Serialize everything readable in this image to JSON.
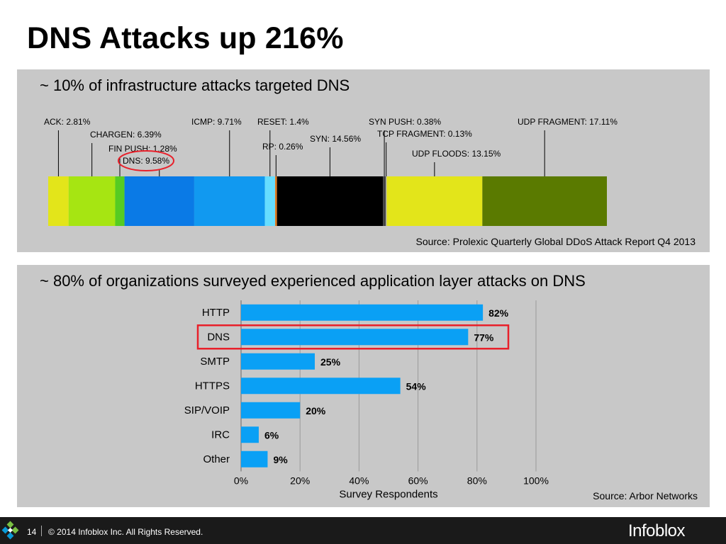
{
  "slide": {
    "title": "DNS Attacks up 216%",
    "page_number": "14",
    "copyright": "© 2014 Infoblox Inc. All Rights Reserved.",
    "logo_text": "Infoblox"
  },
  "chart_data": [
    {
      "type": "bar",
      "orientation": "stacked-horizontal",
      "heading": "~ 10% of infrastructure attacks targeted DNS",
      "source": "Source: Prolexic Quarterly Global DDoS Attack Report Q4 2013",
      "segments": [
        {
          "label": "ACK: 2.81%",
          "value": 2.81,
          "color": "#e3e51a"
        },
        {
          "label": "CHARGEN: 6.39%",
          "value": 6.39,
          "color": "#a6e512"
        },
        {
          "label": "FIN PUSH: 1.28%",
          "value": 1.28,
          "color": "#55cc22"
        },
        {
          "label": "DNS: 9.58%",
          "value": 9.58,
          "color": "#0a7ae6",
          "highlight": true
        },
        {
          "label": "ICMP: 9.71%",
          "value": 9.71,
          "color": "#1199f0"
        },
        {
          "label": "RESET: 1.4%",
          "value": 1.4,
          "color": "#66ddff"
        },
        {
          "label": "RP: 0.26%",
          "value": 0.26,
          "color": "#e07a20"
        },
        {
          "label": "SYN: 14.56%",
          "value": 14.56,
          "color": "#000000"
        },
        {
          "label": "SYN PUSH: 0.38%",
          "value": 0.38,
          "color": "#444444"
        },
        {
          "label": "TCP FRAGMENT: 0.13%",
          "value": 0.13,
          "color": "#aaaaaa"
        },
        {
          "label": "UDP FLOODS: 13.15%",
          "value": 13.15,
          "color": "#e3e51a"
        },
        {
          "label": "UDP FRAGMENT: 17.11%",
          "value": 17.11,
          "color": "#5a7a00"
        }
      ]
    },
    {
      "type": "bar",
      "orientation": "horizontal",
      "heading": "~ 80% of organizations surveyed experienced application layer attacks on DNS",
      "source": "Source: Arbor Networks",
      "xlabel": "Survey Respondents",
      "xlim": [
        0,
        100
      ],
      "xticks": [
        "0%",
        "20%",
        "40%",
        "60%",
        "80%",
        "100%"
      ],
      "categories": [
        "HTTP",
        "DNS",
        "SMTP",
        "HTTPS",
        "SIP/VOIP",
        "IRC",
        "Other"
      ],
      "values": [
        82,
        77,
        25,
        54,
        20,
        6,
        9
      ],
      "value_labels": [
        "82%",
        "77%",
        "25%",
        "54%",
        "20%",
        "6%",
        "9%"
      ],
      "highlight_category": "DNS",
      "bar_color": "#0aa0f5",
      "highlight_color": "#e8202a"
    }
  ]
}
